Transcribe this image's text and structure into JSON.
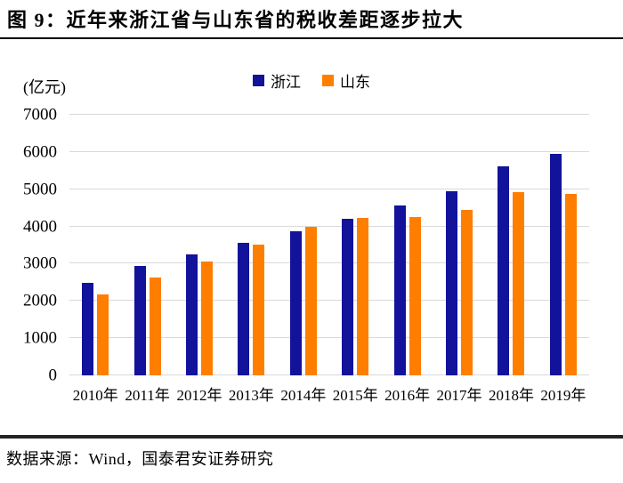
{
  "figure": {
    "title": "图 9：近年来浙江省与山东省的税收差距逐步拉大",
    "source": "数据来源：Wind，国泰君安证券研究"
  },
  "chart_data": {
    "type": "bar",
    "title": "近年来浙江省与山东省的税收差距逐步拉大",
    "unit_label": "(亿元)",
    "categories": [
      "2010年",
      "2011年",
      "2012年",
      "2013年",
      "2014年",
      "2015年",
      "2016年",
      "2017年",
      "2018年",
      "2019年"
    ],
    "series": [
      {
        "name": "浙江",
        "color": "#12129B",
        "values": [
          2480,
          2950,
          3260,
          3570,
          3860,
          4210,
          4560,
          4950,
          5610,
          5950
        ]
      },
      {
        "name": "山东",
        "color": "#FF7E00",
        "values": [
          2170,
          2620,
          3060,
          3520,
          3980,
          4240,
          4260,
          4450,
          4930,
          4880
        ]
      }
    ],
    "ylim": [
      0,
      7000
    ],
    "ytick_step": 1000,
    "xlabel": "",
    "ylabel": "(亿元)",
    "grid": "horizontal",
    "gridline_color": "#D9D9D9",
    "legend_position": "top-center"
  }
}
